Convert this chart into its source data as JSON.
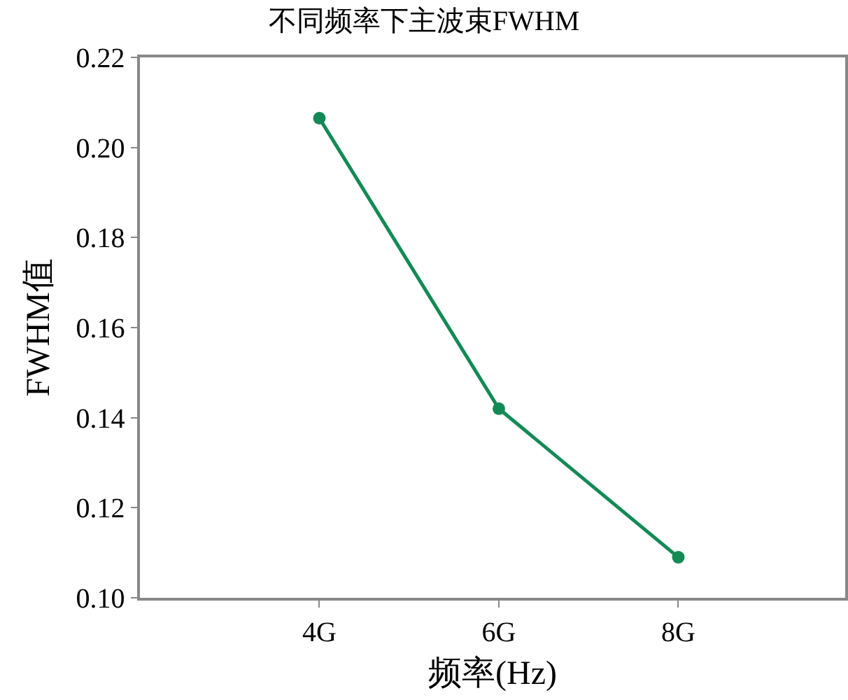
{
  "chart_data": {
    "type": "line",
    "title": "不同频率下主波束FWHM",
    "xlabel": "频率(Hz)",
    "ylabel": "FWHM值",
    "categories": [
      "4G",
      "6G",
      "8G"
    ],
    "series": [
      {
        "color": "#138a55",
        "values": [
          0.2065,
          0.142,
          0.109
        ]
      }
    ],
    "ylim": [
      0.1,
      0.22
    ],
    "yticks": [
      {
        "value": 0.1,
        "label": "0.10"
      },
      {
        "value": 0.12,
        "label": "0.12"
      },
      {
        "value": 0.14,
        "label": "0.14"
      },
      {
        "value": 0.16,
        "label": "0.16"
      },
      {
        "value": 0.18,
        "label": "0.18"
      },
      {
        "value": 0.2,
        "label": "0.20"
      },
      {
        "value": 0.22,
        "label": "0.22"
      }
    ],
    "grid": false,
    "legend": false,
    "marker": "circle",
    "line_style": "solid"
  }
}
